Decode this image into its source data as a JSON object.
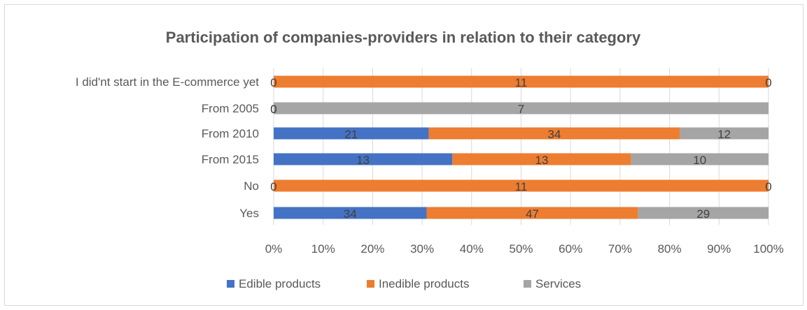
{
  "chart_data": {
    "type": "bar",
    "orientation": "horizontal",
    "stacked": "percent",
    "title": "Participation of companies-providers in relation to their category",
    "xlabel": "",
    "ylabel": "",
    "categories": [
      "Yes",
      "No",
      "From 2015",
      "From 2010",
      "From 2005",
      "I did'nt start in the E-commerce yet"
    ],
    "series": [
      {
        "name": "Edible products",
        "color": "#4472c4",
        "values": [
          34,
          0,
          13,
          21,
          0,
          0
        ]
      },
      {
        "name": "Inedible products",
        "color": "#ed7d31",
        "values": [
          47,
          11,
          13,
          34,
          0,
          11
        ]
      },
      {
        "name": "Services",
        "color": "#a5a5a5",
        "values": [
          29,
          0,
          10,
          12,
          7,
          0
        ]
      }
    ],
    "x_ticks": [
      "0%",
      "10%",
      "20%",
      "30%",
      "40%",
      "50%",
      "60%",
      "70%",
      "80%",
      "90%",
      "100%"
    ],
    "xlim": [
      0,
      100
    ],
    "grid": true,
    "legend": "bottom",
    "data_labels": true
  }
}
